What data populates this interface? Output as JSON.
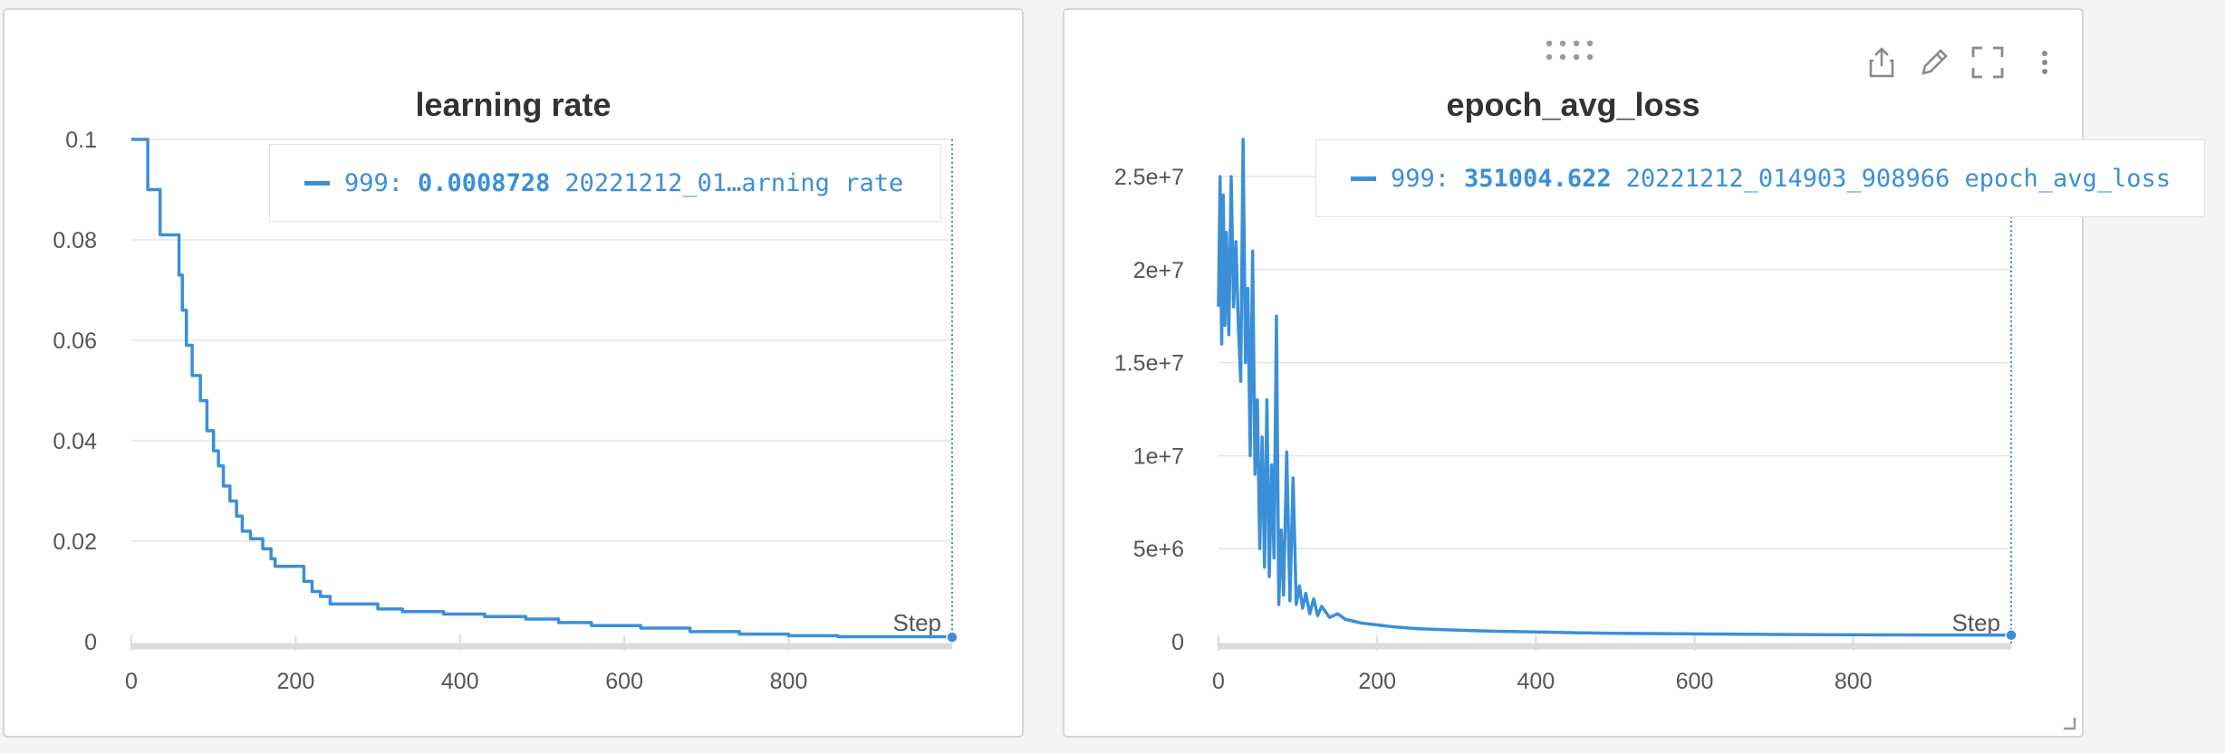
{
  "panels": [
    {
      "title": "learning rate",
      "legend": {
        "step": "999:",
        "value": "0.0008728",
        "name": "20221212_01…arning rate"
      }
    },
    {
      "title": "epoch_avg_loss",
      "legend": {
        "step": "999:",
        "value": "351004.622",
        "name": "20221212_014903_908966 epoch_avg_loss"
      }
    }
  ],
  "colors": {
    "series": "#3b8fd8",
    "grid": "#e6e6e6",
    "axis": "#dcdcdc",
    "text": "#555555"
  },
  "icons": [
    "drag-handle-icon",
    "share-icon",
    "edit-icon",
    "fullscreen-icon",
    "more-vert-icon",
    "resize-corner-icon"
  ],
  "chart_data": [
    {
      "type": "line",
      "title": "learning rate",
      "xlabel": "Step",
      "ylabel": "",
      "xlim": [
        0,
        999
      ],
      "ylim": [
        0,
        0.1
      ],
      "x_ticks": [
        0,
        200,
        400,
        600,
        800
      ],
      "y_ticks": [
        0,
        0.02,
        0.04,
        0.06,
        0.08,
        0.1
      ],
      "x_tick_labels": [
        "0",
        "200",
        "400",
        "600",
        "800"
      ],
      "y_tick_labels": [
        "0",
        "0.02",
        "0.04",
        "0.06",
        "0.08",
        "0.1"
      ],
      "grid": true,
      "legend_position": "top-right",
      "series": [
        {
          "color": "#3b8fd8",
          "x": [
            0,
            10,
            20,
            35,
            58,
            62,
            67,
            74,
            84,
            92,
            100,
            106,
            112,
            120,
            128,
            135,
            145,
            160,
            170,
            175,
            185,
            210,
            220,
            230,
            242,
            270,
            300,
            330,
            380,
            430,
            480,
            520,
            560,
            620,
            680,
            740,
            800,
            860,
            999
          ],
          "y": [
            0.1,
            0.1,
            0.09,
            0.081,
            0.073,
            0.066,
            0.059,
            0.053,
            0.048,
            0.042,
            0.038,
            0.035,
            0.031,
            0.028,
            0.025,
            0.022,
            0.0205,
            0.0185,
            0.0165,
            0.015,
            0.015,
            0.012,
            0.01,
            0.009,
            0.0075,
            0.0075,
            0.0065,
            0.006,
            0.0055,
            0.005,
            0.0045,
            0.0038,
            0.0032,
            0.0027,
            0.002,
            0.0015,
            0.0012,
            0.001,
            0.0008728
          ]
        }
      ]
    },
    {
      "type": "line",
      "title": "epoch_avg_loss",
      "xlabel": "Step",
      "ylabel": "",
      "xlim": [
        0,
        999
      ],
      "ylim": [
        0,
        27000000
      ],
      "x_ticks": [
        0,
        200,
        400,
        600,
        800
      ],
      "y_ticks": [
        0,
        5000000,
        10000000,
        15000000,
        20000000,
        25000000
      ],
      "x_tick_labels": [
        "0",
        "200",
        "400",
        "600",
        "800"
      ],
      "y_tick_labels": [
        "0",
        "5e+6",
        "1e+7",
        "1.5e+7",
        "2e+7",
        "2.5e+7"
      ],
      "grid": true,
      "legend_position": "top-right",
      "series": [
        {
          "color": "#3b8fd8",
          "x": [
            0,
            2,
            4,
            6,
            8,
            10,
            13,
            16,
            19,
            22,
            25,
            28,
            31,
            34,
            37,
            40,
            43,
            46,
            49,
            52,
            55,
            58,
            61,
            64,
            67,
            70,
            73,
            76,
            79,
            82,
            86,
            90,
            94,
            98,
            102,
            106,
            110,
            115,
            120,
            125,
            130,
            140,
            150,
            160,
            170,
            180,
            200,
            220,
            250,
            300,
            350,
            400,
            450,
            500,
            600,
            700,
            800,
            900,
            999
          ],
          "y": [
            18000000,
            25000000,
            16000000,
            24000000,
            17000000,
            22000000,
            16500000,
            25000000,
            18000000,
            21500000,
            17000000,
            14000000,
            27000000,
            15000000,
            19000000,
            10000000,
            21000000,
            9000000,
            13000000,
            5000000,
            11000000,
            4000000,
            13000000,
            3500000,
            9500000,
            4500000,
            17500000,
            2000000,
            6000000,
            2500000,
            10200000,
            2200000,
            8800000,
            2000000,
            3000000,
            1800000,
            2600000,
            1500000,
            2300000,
            1400000,
            1900000,
            1300000,
            1500000,
            1200000,
            1100000,
            1000000,
            900000,
            800000,
            700000,
            620000,
            560000,
            520000,
            480000,
            450000,
            420000,
            390000,
            370000,
            360000,
            351004.622
          ]
        }
      ]
    }
  ]
}
